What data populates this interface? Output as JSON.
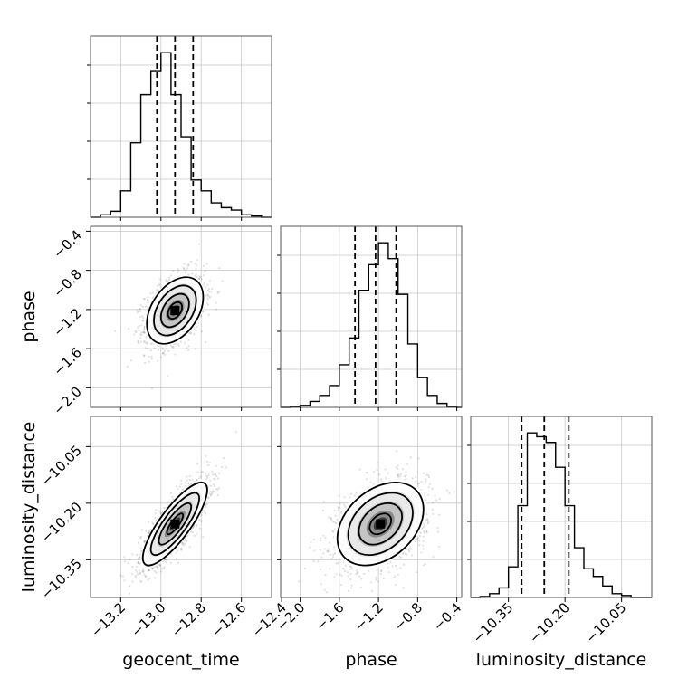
{
  "chart_data": {
    "type": "corner",
    "title": "",
    "parameters": [
      {
        "name": "geocent_time",
        "label": "geocent_time",
        "range": [
          -13.35,
          -12.45
        ],
        "ticks": [
          "−13.2",
          "−13.0",
          "−12.8",
          "−12.6",
          "−12.4"
        ],
        "tick_values": [
          -13.2,
          -13.0,
          -12.8,
          -12.6,
          -12.4
        ],
        "quantiles": [
          -13.02,
          -12.93,
          -12.84
        ],
        "histogram": {
          "bin_edges": [
            -13.35,
            -13.3,
            -13.25,
            -13.2,
            -13.15,
            -13.1,
            -13.05,
            -13.0,
            -12.95,
            -12.9,
            -12.85,
            -12.8,
            -12.75,
            -12.7,
            -12.65,
            -12.6,
            -12.55,
            -12.5,
            -12.45
          ],
          "counts": [
            0,
            2,
            5,
            22,
            62,
            102,
            122,
            137,
            102,
            67,
            31,
            22,
            12,
            8,
            6,
            2,
            1,
            0
          ]
        }
      },
      {
        "name": "phase",
        "label": "phase",
        "range": [
          -2.2,
          -0.35
        ],
        "ticks": [
          "−2.0",
          "−1.6",
          "−1.2",
          "−0.8",
          "−0.4"
        ],
        "tick_values": [
          -2.0,
          -1.6,
          -1.2,
          -0.8,
          -0.4
        ],
        "quantiles": [
          -1.44,
          -1.23,
          -1.02
        ],
        "histogram": {
          "bin_edges": [
            -2.2,
            -2.1,
            -2.0,
            -1.9,
            -1.8,
            -1.7,
            -1.6,
            -1.5,
            -1.4,
            -1.3,
            -1.2,
            -1.1,
            -1.0,
            -0.9,
            -0.8,
            -0.7,
            -0.6,
            -0.5,
            -0.4,
            -0.35
          ],
          "counts": [
            0,
            1,
            2,
            6,
            12,
            22,
            43,
            70,
            118,
            144,
            166,
            150,
            114,
            64,
            30,
            12,
            4,
            1,
            0
          ]
        }
      },
      {
        "name": "luminosity_distance",
        "label": "luminosity_distance",
        "range": [
          -10.45,
          -9.97
        ],
        "ticks": [
          "−10.35",
          "−10.20",
          "−10.05"
        ],
        "tick_values": [
          -10.35,
          -10.2,
          -10.05
        ],
        "quantiles": [
          -10.315,
          -10.255,
          -10.19
        ],
        "histogram": {
          "bin_edges": [
            -10.45,
            -10.425,
            -10.4,
            -10.375,
            -10.35,
            -10.325,
            -10.3,
            -10.275,
            -10.25,
            -10.225,
            -10.2,
            -10.175,
            -10.15,
            -10.125,
            -10.1,
            -10.075,
            -10.05,
            -10.025,
            -10.0,
            -9.97
          ],
          "counts": [
            0,
            1,
            4,
            10,
            32,
            96,
            172,
            168,
            162,
            136,
            96,
            52,
            30,
            22,
            12,
            4,
            2,
            0,
            0
          ]
        }
      }
    ],
    "pairs": [
      {
        "x": "geocent_time",
        "y": "phase",
        "mean": [
          -12.93,
          -1.21
        ],
        "sd": [
          0.07,
          0.17
        ],
        "rho": 0.4
      },
      {
        "x": "geocent_time",
        "y": "luminosity_distance",
        "mean": [
          -12.93,
          -10.255
        ],
        "sd": [
          0.08,
          0.055
        ],
        "rho": 0.82
      },
      {
        "x": "phase",
        "y": "luminosity_distance",
        "mean": [
          -1.18,
          -10.255
        ],
        "sd": [
          0.22,
          0.055
        ],
        "rho": 0.35
      }
    ],
    "contour_levels": [
      0.5,
      1.0,
      1.5,
      2.0
    ],
    "grid": true,
    "legend": "none"
  }
}
